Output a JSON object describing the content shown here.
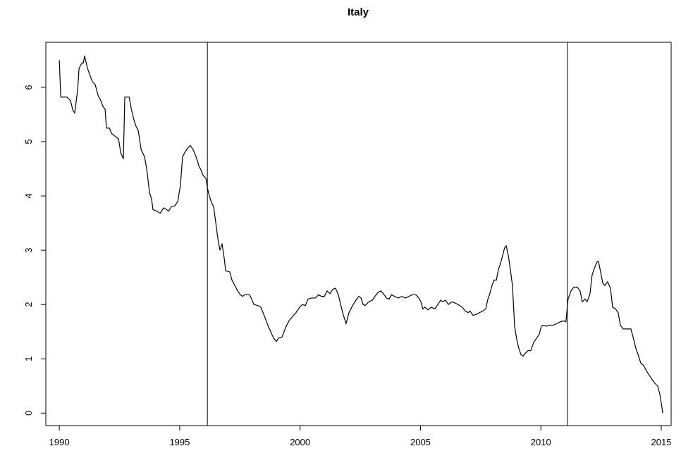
{
  "chart_data": {
    "type": "line",
    "title": "Italy",
    "color": "#000000",
    "x": [
      1990.0,
      1990.06,
      1990.32,
      1990.47,
      1990.56,
      1990.64,
      1990.76,
      1990.82,
      1990.94,
      1991.0,
      1991.05,
      1991.17,
      1991.29,
      1991.38,
      1991.49,
      1991.61,
      1991.73,
      1991.81,
      1991.9,
      1991.96,
      1992.08,
      1992.17,
      1992.31,
      1992.46,
      1992.55,
      1992.66,
      1992.72,
      1992.9,
      1992.99,
      1993.1,
      1993.19,
      1993.28,
      1993.4,
      1993.54,
      1993.63,
      1993.75,
      1993.83,
      1993.89,
      1994.04,
      1994.19,
      1994.33,
      1994.45,
      1994.54,
      1994.65,
      1994.8,
      1994.92,
      1995.03,
      1995.12,
      1995.21,
      1995.33,
      1995.44,
      1995.56,
      1995.68,
      1995.8,
      1995.88,
      1995.97,
      1996.09,
      1996.15,
      1996.23,
      1996.32,
      1996.41,
      1996.5,
      1996.59,
      1996.67,
      1996.76,
      1996.85,
      1996.91,
      1997.08,
      1997.17,
      1997.29,
      1997.41,
      1997.52,
      1997.61,
      1997.7,
      1997.9,
      1997.99,
      1998.08,
      1998.25,
      1998.37,
      1998.46,
      1998.55,
      1998.66,
      1998.78,
      1998.9,
      1999.02,
      1999.1,
      1999.25,
      1999.4,
      1999.54,
      1999.69,
      1999.83,
      1999.98,
      2000.1,
      2000.22,
      2000.33,
      2000.48,
      2000.63,
      2000.77,
      2000.89,
      2001.01,
      2001.12,
      2001.24,
      2001.36,
      2001.47,
      2001.59,
      2001.71,
      2001.8,
      2001.91,
      2002.03,
      2002.18,
      2002.32,
      2002.44,
      2002.53,
      2002.62,
      2002.7,
      2002.85,
      2003.0,
      2003.11,
      2003.23,
      2003.35,
      2003.46,
      2003.58,
      2003.7,
      2003.79,
      2003.93,
      2004.08,
      2004.23,
      2004.37,
      2004.52,
      2004.66,
      2004.81,
      2004.93,
      2005.02,
      2005.1,
      2005.19,
      2005.31,
      2005.45,
      2005.6,
      2005.72,
      2005.84,
      2005.92,
      2006.04,
      2006.16,
      2006.3,
      2006.48,
      2006.63,
      2006.74,
      2006.86,
      2006.98,
      2007.06,
      2007.18,
      2007.33,
      2007.45,
      2007.59,
      2007.71,
      2007.8,
      2007.88,
      2007.97,
      2008.06,
      2008.15,
      2008.24,
      2008.32,
      2008.41,
      2008.5,
      2008.56,
      2008.65,
      2008.73,
      2008.82,
      2008.91,
      2009.0,
      2009.08,
      2009.17,
      2009.26,
      2009.35,
      2009.46,
      2009.58,
      2009.7,
      2009.82,
      2009.93,
      2010.02,
      2010.11,
      2010.23,
      2010.37,
      2010.52,
      2010.66,
      2010.81,
      2010.96,
      2011.04,
      2011.13,
      2011.25,
      2011.37,
      2011.51,
      2011.63,
      2011.72,
      2011.84,
      2011.92,
      2012.04,
      2012.13,
      2012.25,
      2012.33,
      2012.39,
      2012.48,
      2012.57,
      2012.66,
      2012.77,
      2012.89,
      2012.98,
      2013.1,
      2013.21,
      2013.3,
      2013.42,
      2013.56,
      2013.74,
      2013.86,
      2013.94,
      2014.06,
      2014.15,
      2014.27,
      2014.38,
      2014.5,
      2014.62,
      2014.73,
      2014.85,
      2014.94,
      2015.03,
      2015.06
    ],
    "values": [
      6.5,
      5.82,
      5.82,
      5.75,
      5.58,
      5.53,
      5.95,
      6.35,
      6.45,
      6.45,
      6.58,
      6.35,
      6.2,
      6.1,
      6.05,
      5.85,
      5.75,
      5.65,
      5.6,
      5.25,
      5.25,
      5.15,
      5.1,
      5.05,
      4.8,
      4.68,
      5.82,
      5.82,
      5.6,
      5.4,
      5.28,
      5.2,
      4.85,
      4.72,
      4.5,
      4.05,
      3.95,
      3.75,
      3.72,
      3.68,
      3.78,
      3.75,
      3.72,
      3.8,
      3.82,
      3.9,
      4.2,
      4.72,
      4.8,
      4.88,
      4.93,
      4.85,
      4.72,
      4.55,
      4.48,
      4.38,
      4.32,
      4.15,
      4.0,
      3.88,
      3.8,
      3.5,
      3.2,
      3.0,
      3.12,
      2.85,
      2.62,
      2.6,
      2.45,
      2.35,
      2.25,
      2.18,
      2.15,
      2.18,
      2.18,
      2.1,
      2.0,
      1.98,
      1.95,
      1.85,
      1.75,
      1.62,
      1.5,
      1.38,
      1.32,
      1.38,
      1.4,
      1.58,
      1.7,
      1.78,
      1.85,
      1.95,
      2.0,
      1.98,
      2.1,
      2.12,
      2.12,
      2.18,
      2.15,
      2.15,
      2.25,
      2.2,
      2.28,
      2.3,
      2.18,
      1.95,
      1.8,
      1.65,
      1.85,
      1.98,
      2.08,
      2.15,
      2.12,
      2.0,
      1.98,
      2.05,
      2.08,
      2.15,
      2.22,
      2.25,
      2.2,
      2.12,
      2.1,
      2.18,
      2.15,
      2.12,
      2.15,
      2.12,
      2.15,
      2.18,
      2.18,
      2.12,
      2.05,
      1.92,
      1.95,
      1.9,
      1.95,
      1.92,
      2.0,
      2.08,
      2.05,
      2.08,
      2.0,
      2.05,
      2.02,
      1.98,
      1.95,
      1.88,
      1.85,
      1.88,
      1.8,
      1.82,
      1.85,
      1.88,
      1.92,
      2.1,
      2.2,
      2.35,
      2.45,
      2.45,
      2.65,
      2.75,
      2.9,
      3.05,
      3.08,
      2.9,
      2.65,
      2.35,
      1.6,
      1.35,
      1.2,
      1.08,
      1.05,
      1.1,
      1.15,
      1.15,
      1.3,
      1.38,
      1.45,
      1.6,
      1.62,
      1.6,
      1.62,
      1.62,
      1.65,
      1.68,
      1.7,
      1.68,
      2.1,
      2.25,
      2.32,
      2.32,
      2.25,
      2.05,
      2.1,
      2.05,
      2.2,
      2.55,
      2.7,
      2.78,
      2.8,
      2.6,
      2.4,
      2.35,
      2.42,
      2.3,
      1.95,
      1.92,
      1.85,
      1.62,
      1.55,
      1.55,
      1.55,
      1.35,
      1.2,
      1.05,
      0.92,
      0.88,
      0.78,
      0.7,
      0.62,
      0.55,
      0.5,
      0.35,
      0.1,
      0.0
    ],
    "vlines": [
      1996.15,
      2011.1
    ],
    "xlim": [
      1989.44,
      2015.41
    ],
    "xticks": [
      1990,
      1995,
      2000,
      2005,
      2010,
      2015
    ],
    "ylim": [
      -0.23,
      6.83
    ],
    "yticks": [
      0,
      1,
      2,
      3,
      4,
      5,
      6
    ],
    "grid": false
  }
}
